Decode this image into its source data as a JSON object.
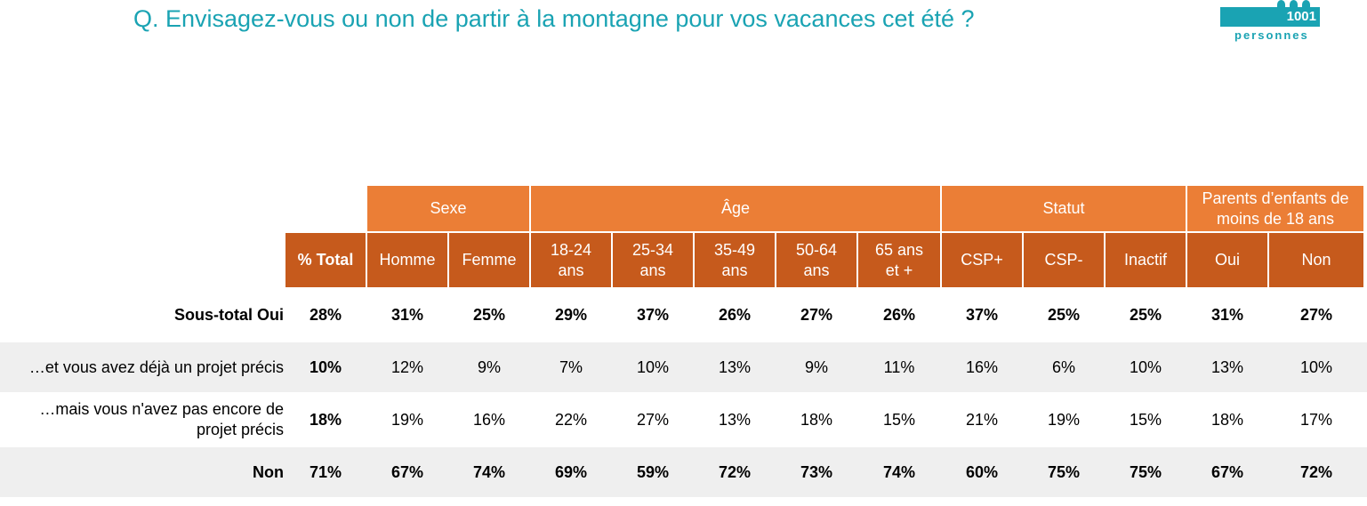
{
  "title": "Q. Envisagez-vous ou non de partir à la montagne pour vos vacances cet été ?",
  "logo": {
    "number": "1001",
    "text": "personnes"
  },
  "colors": {
    "title": "#1aa3b3",
    "group_header": "#eb7e36",
    "sub_header": "#c65a1c",
    "row_shade": "#efefef"
  },
  "groups": [
    {
      "label": "Sexe"
    },
    {
      "label": "Âge"
    },
    {
      "label": "Statut"
    },
    {
      "label": "Parents d’enfants de moins de 18 ans"
    }
  ],
  "columns": [
    {
      "label": "% Total"
    },
    {
      "label": "Homme"
    },
    {
      "label": "Femme"
    },
    {
      "label": "18-24 ans"
    },
    {
      "label": "25-34 ans"
    },
    {
      "label": "35-49 ans"
    },
    {
      "label": "50-64 ans"
    },
    {
      "label": "65 ans et +"
    },
    {
      "label": "CSP+"
    },
    {
      "label": "CSP-"
    },
    {
      "label": "Inactif"
    },
    {
      "label": "Oui"
    },
    {
      "label": "Non"
    }
  ],
  "rows": [
    {
      "label": "Sous-total Oui",
      "values": [
        "28%",
        "31%",
        "25%",
        "29%",
        "37%",
        "26%",
        "27%",
        "26%",
        "37%",
        "25%",
        "25%",
        "31%",
        "27%"
      ]
    },
    {
      "label": "…et vous avez déjà un projet précis",
      "values": [
        "10%",
        "12%",
        "9%",
        "7%",
        "10%",
        "13%",
        "9%",
        "11%",
        "16%",
        "6%",
        "10%",
        "13%",
        "10%"
      ]
    },
    {
      "label": "…mais vous n'avez pas encore de projet précis",
      "values": [
        "18%",
        "19%",
        "16%",
        "22%",
        "27%",
        "13%",
        "18%",
        "15%",
        "21%",
        "19%",
        "15%",
        "18%",
        "17%"
      ]
    },
    {
      "label": "Non",
      "values": [
        "71%",
        "67%",
        "74%",
        "69%",
        "59%",
        "72%",
        "73%",
        "74%",
        "60%",
        "75%",
        "75%",
        "67%",
        "72%"
      ]
    }
  ]
}
